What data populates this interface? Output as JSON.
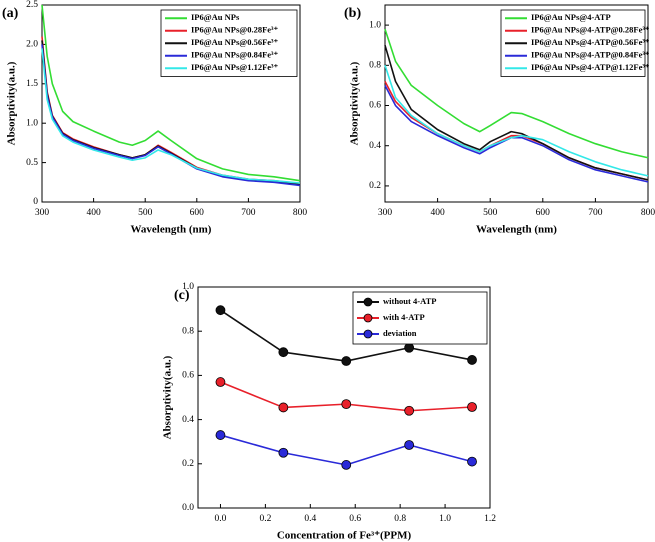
{
  "chart_data": [
    {
      "type": "line",
      "panel_label": "(a)",
      "x_label": "Wavelength (nm)",
      "y_label": "Absorptivity(a.u.)",
      "x": [
        300,
        310,
        320,
        340,
        360,
        400,
        450,
        475,
        500,
        525,
        550,
        600,
        650,
        700,
        750,
        800
      ],
      "xlim": [
        300,
        800
      ],
      "xticks": [
        300,
        400,
        500,
        600,
        700,
        800
      ],
      "ylim": [
        0,
        2.5
      ],
      "yticks": [
        0,
        0.5,
        {
          "value": 1.0,
          "label": "1.0"
        },
        1.5,
        {
          "value": 2.0,
          "label": "2.0"
        },
        2.5
      ],
      "legend": "upper right",
      "series": [
        {
          "name": "IP6@Au NPs",
          "color": "#33dd33",
          "values": [
            2.5,
            1.85,
            1.5,
            1.15,
            1.02,
            0.9,
            0.76,
            0.72,
            0.78,
            0.9,
            0.78,
            0.55,
            0.42,
            0.35,
            0.32,
            0.27
          ]
        },
        {
          "name": "IP6@Au NPs@0.28Fe³⁺",
          "color": "#e8202a",
          "values": [
            2.1,
            1.4,
            1.1,
            0.88,
            0.8,
            0.7,
            0.6,
            0.56,
            0.6,
            0.72,
            0.63,
            0.44,
            0.34,
            0.29,
            0.27,
            0.23
          ]
        },
        {
          "name": "IP6@Au NPs@0.56Fe³⁺",
          "color": "#111111",
          "values": [
            2.05,
            1.38,
            1.09,
            0.87,
            0.79,
            0.69,
            0.6,
            0.56,
            0.6,
            0.71,
            0.62,
            0.43,
            0.33,
            0.28,
            0.26,
            0.22
          ]
        },
        {
          "name": "IP6@Au NPs@0.84Fe³⁺",
          "color": "#2a2ad8",
          "values": [
            2.0,
            1.35,
            1.08,
            0.86,
            0.78,
            0.68,
            0.59,
            0.55,
            0.59,
            0.7,
            0.61,
            0.42,
            0.32,
            0.27,
            0.25,
            0.21
          ]
        },
        {
          "name": "IP6@Au NPs@1.12Fe³⁺",
          "color": "#33e8e8",
          "values": [
            1.95,
            1.3,
            1.05,
            0.84,
            0.76,
            0.66,
            0.57,
            0.53,
            0.56,
            0.66,
            0.6,
            0.43,
            0.34,
            0.29,
            0.27,
            0.24
          ]
        }
      ]
    },
    {
      "type": "line",
      "panel_label": "(b)",
      "x_label": "Wavelength (nm)",
      "y_label": "Absorptivity(a.u.)",
      "x": [
        300,
        320,
        350,
        400,
        450,
        480,
        500,
        540,
        560,
        600,
        650,
        700,
        750,
        800
      ],
      "xlim": [
        300,
        800
      ],
      "xticks": [
        300,
        400,
        500,
        600,
        700,
        800
      ],
      "ylim": [
        0.12,
        1.1
      ],
      "yticks": [
        0.2,
        0.4,
        0.6,
        0.8,
        {
          "value": 1.0,
          "label": "1.0"
        }
      ],
      "legend": "upper right",
      "series": [
        {
          "name": "IP6@Au NPs@4-ATP",
          "color": "#33dd33",
          "values": [
            0.98,
            0.82,
            0.7,
            0.6,
            0.51,
            0.47,
            0.5,
            0.565,
            0.56,
            0.52,
            0.46,
            0.41,
            0.37,
            0.34
          ]
        },
        {
          "name": "IP6@Au NPs@4-ATP@0.28Fe³⁺",
          "color": "#e8202a",
          "values": [
            0.72,
            0.62,
            0.54,
            0.46,
            0.4,
            0.37,
            0.4,
            0.45,
            0.45,
            0.41,
            0.34,
            0.29,
            0.26,
            0.23
          ]
        },
        {
          "name": "IP6@Au NPs@4-ATP@0.56Fe³⁺",
          "color": "#111111",
          "values": [
            0.9,
            0.72,
            0.58,
            0.48,
            0.41,
            0.38,
            0.42,
            0.47,
            0.46,
            0.41,
            0.34,
            0.29,
            0.26,
            0.23
          ]
        },
        {
          "name": "IP6@Au NPs@4-ATP@0.84Fe³⁺",
          "color": "#2a2ad8",
          "values": [
            0.7,
            0.6,
            0.52,
            0.45,
            0.39,
            0.36,
            0.39,
            0.44,
            0.44,
            0.4,
            0.33,
            0.28,
            0.25,
            0.22
          ]
        },
        {
          "name": "IP6@Au NPs@4-ATP@1.12Fe³⁺",
          "color": "#33e8e8",
          "values": [
            0.8,
            0.64,
            0.55,
            0.46,
            0.4,
            0.37,
            0.4,
            0.44,
            0.45,
            0.43,
            0.37,
            0.32,
            0.28,
            0.25
          ]
        }
      ]
    },
    {
      "type": "line",
      "markers": true,
      "panel_label": "(c)",
      "x_label": "Concentration of Fe³⁺(PPM)",
      "y_label": "Absorptivity(a.u.)",
      "x": [
        0,
        0.28,
        0.56,
        0.84,
        1.12
      ],
      "xlim": [
        -0.1,
        1.2
      ],
      "xticks": [
        {
          "value": 0,
          "label": "0.0"
        },
        0.2,
        0.4,
        0.6,
        0.8,
        {
          "value": 1.0,
          "label": "1.0"
        },
        1.2
      ],
      "ylim": [
        0,
        1.0
      ],
      "yticks": [
        {
          "value": 0,
          "label": "0.0"
        },
        0.2,
        0.4,
        0.6,
        0.8,
        {
          "value": 1.0,
          "label": "1.0"
        }
      ],
      "legend": "upper right",
      "series": [
        {
          "name": "without 4-ATP",
          "color": "#111111",
          "values": [
            0.895,
            0.705,
            0.665,
            0.725,
            0.67
          ]
        },
        {
          "name": "with 4-ATP",
          "color": "#e8202a",
          "values": [
            0.57,
            0.455,
            0.47,
            0.44,
            0.457
          ]
        },
        {
          "name": "deviation",
          "color": "#2a2ad8",
          "values": [
            0.33,
            0.25,
            0.195,
            0.285,
            0.21
          ]
        }
      ]
    }
  ]
}
